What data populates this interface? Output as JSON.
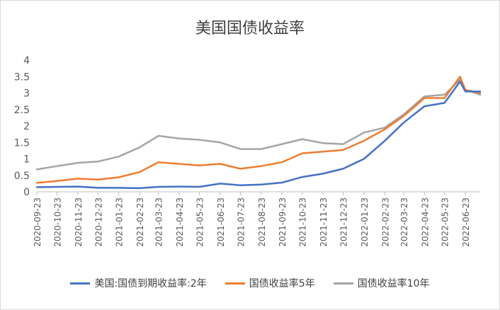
{
  "chart_data": {
    "type": "line",
    "title": "美国国债收益率",
    "xlabel": "",
    "ylabel": "",
    "ylim": [
      0,
      4
    ],
    "y_ticks": [
      "0",
      "0.5",
      "1",
      "1.5",
      "2",
      "2.5",
      "3",
      "3.5",
      "4"
    ],
    "x_tick_labels": [
      "2020-09-23",
      "2020-10-23",
      "2020-11-23",
      "2020-12-23",
      "2021-01-23",
      "2021-02-23",
      "2021-03-23",
      "2021-04-23",
      "2021-05-23",
      "2021-06-23",
      "2021-07-23",
      "2021-08-23",
      "2021-09-23",
      "2021-10-23",
      "2021-11-23",
      "2021-12-23",
      "2022-01-23",
      "2022-02-23",
      "2022-03-23",
      "2022-04-23",
      "2022-05-23",
      "2022-06-23"
    ],
    "x": [
      "2020-09-23",
      "2020-10-23",
      "2020-11-23",
      "2020-12-23",
      "2021-01-23",
      "2021-02-23",
      "2021-03-23",
      "2021-04-23",
      "2021-05-23",
      "2021-06-23",
      "2021-07-23",
      "2021-08-23",
      "2021-09-23",
      "2021-10-23",
      "2021-11-23",
      "2021-12-23",
      "2022-01-23",
      "2022-02-23",
      "2022-03-23",
      "2022-04-23",
      "2022-05-23",
      "2022-06-15",
      "2022-06-23",
      "2022-07-15"
    ],
    "grid": false,
    "legend_position": "bottom",
    "series": [
      {
        "name": "美国:国债到期收益率:2年",
        "color": "#4472C4",
        "values": [
          0.14,
          0.15,
          0.16,
          0.12,
          0.12,
          0.11,
          0.15,
          0.16,
          0.15,
          0.25,
          0.2,
          0.22,
          0.28,
          0.45,
          0.55,
          0.7,
          1.0,
          1.55,
          2.1,
          2.6,
          2.7,
          3.35,
          3.05,
          3.05
        ]
      },
      {
        "name": "国债收益率5年",
        "color": "#ED7D31",
        "values": [
          0.27,
          0.33,
          0.4,
          0.37,
          0.44,
          0.6,
          0.9,
          0.85,
          0.8,
          0.85,
          0.7,
          0.78,
          0.9,
          1.17,
          1.22,
          1.27,
          1.55,
          1.9,
          2.3,
          2.85,
          2.85,
          3.5,
          3.1,
          3.0
        ]
      },
      {
        "name": "国债收益率10年",
        "color": "#A5A5A5",
        "values": [
          0.68,
          0.78,
          0.88,
          0.92,
          1.07,
          1.35,
          1.7,
          1.62,
          1.58,
          1.5,
          1.3,
          1.3,
          1.45,
          1.6,
          1.48,
          1.45,
          1.8,
          1.95,
          2.35,
          2.9,
          2.95,
          3.4,
          3.1,
          2.95
        ]
      }
    ]
  }
}
